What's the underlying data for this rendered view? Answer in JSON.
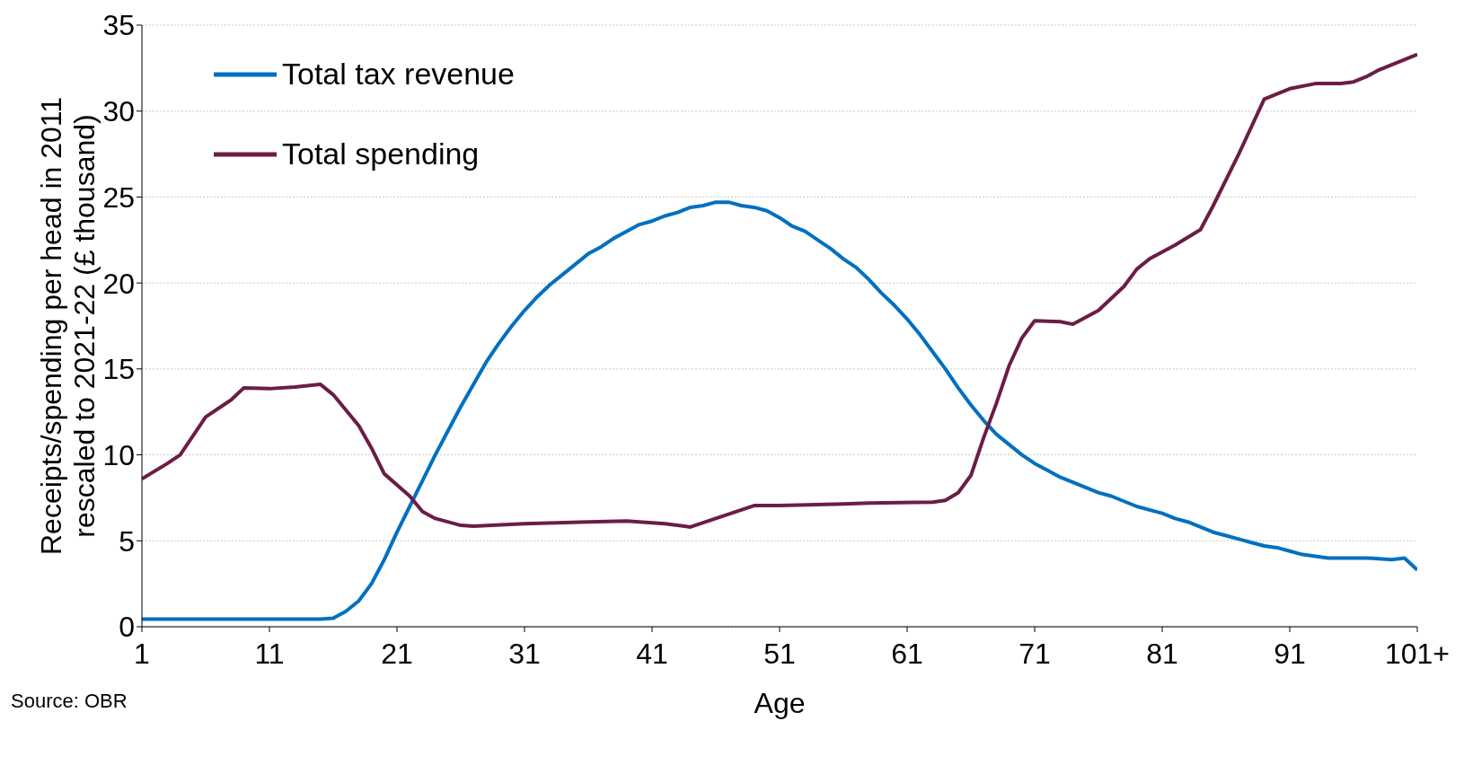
{
  "chart_data": {
    "type": "line",
    "xlabel": "Age",
    "ylabel": "Receipts/spending per head in 2011 rescaled to 2021-22 (£ thousand)",
    "annotations": [
      "Source: OBR"
    ],
    "xlim": [
      1,
      101
    ],
    "xticks": [
      1,
      11,
      21,
      31,
      41,
      51,
      61,
      71,
      81,
      91,
      {
        "value": 101,
        "label": "101+"
      }
    ],
    "ylim": [
      0,
      35
    ],
    "yticks": [
      0,
      5,
      10,
      15,
      20,
      25,
      30,
      35
    ],
    "grid": "y",
    "legend": "top left",
    "marker": "none",
    "line_style": "solid",
    "series": [
      {
        "name": "Total tax revenue",
        "color": "#0070c0",
        "x": [
          1,
          15,
          16,
          17,
          18,
          19,
          20,
          21,
          22,
          23,
          24,
          25,
          26,
          27,
          28,
          29,
          30,
          31,
          32,
          33,
          34,
          35,
          36,
          37,
          38,
          39,
          40,
          41,
          42,
          43,
          44,
          45,
          46,
          47,
          48,
          49,
          50,
          51,
          52,
          53,
          54,
          55,
          56,
          57,
          58,
          59,
          60,
          61,
          62,
          63,
          64,
          65,
          66,
          67,
          68,
          69,
          70,
          71,
          72,
          73,
          74,
          75,
          76,
          77,
          78,
          79,
          80,
          81,
          82,
          83,
          84,
          85,
          86,
          87,
          88,
          89,
          90,
          91,
          92,
          93,
          94,
          95,
          97,
          99,
          100,
          101
        ],
        "values": [
          0.45,
          0.45,
          0.5,
          0.9,
          1.5,
          2.5,
          3.9,
          5.5,
          7,
          8.5,
          10,
          11.4,
          12.8,
          14.1,
          15.4,
          16.5,
          17.5,
          18.4,
          19.2,
          19.9,
          20.5,
          21.1,
          21.7,
          22.1,
          22.6,
          23,
          23.4,
          23.6,
          23.9,
          24.1,
          24.4,
          24.5,
          24.7,
          24.7,
          24.5,
          24.4,
          24.2,
          23.8,
          23.3,
          23,
          22.5,
          22,
          21.4,
          20.9,
          20.2,
          19.4,
          18.7,
          17.9,
          17,
          16,
          15,
          13.9,
          12.9,
          12,
          11.2,
          10.6,
          10,
          9.5,
          9.1,
          8.7,
          8.4,
          8.1,
          7.8,
          7.6,
          7.3,
          7,
          6.8,
          6.6,
          6.3,
          6.1,
          5.8,
          5.5,
          5.3,
          5.1,
          4.9,
          4.7,
          4.6,
          4.4,
          4.2,
          4.1,
          4,
          4,
          4,
          3.9,
          4,
          3.3
        ]
      },
      {
        "name": "Total spending",
        "color": "#6b1d45",
        "x": [
          1,
          3,
          4,
          6,
          8,
          9,
          11,
          13,
          15,
          16,
          18,
          19,
          20,
          22,
          23,
          24,
          26,
          27,
          31,
          36,
          39,
          42,
          44,
          46,
          48,
          49,
          51,
          56,
          58,
          63,
          64,
          65,
          66,
          67,
          68,
          69,
          70,
          71,
          73,
          74,
          76,
          78,
          79,
          80,
          82,
          84,
          85,
          87,
          89,
          91,
          93,
          95,
          96,
          97,
          98,
          100,
          101
        ],
        "values": [
          8.6,
          9.5,
          10,
          12.2,
          13.2,
          13.9,
          13.85,
          13.95,
          14.1,
          13.5,
          11.7,
          10.4,
          8.9,
          7.6,
          6.7,
          6.3,
          5.9,
          5.85,
          6,
          6.1,
          6.15,
          6,
          5.8,
          6.3,
          6.8,
          7.05,
          7.05,
          7.15,
          7.2,
          7.25,
          7.35,
          7.8,
          8.8,
          11,
          13,
          15.2,
          16.8,
          17.8,
          17.75,
          17.6,
          18.4,
          19.8,
          20.8,
          21.4,
          22.2,
          23.1,
          24.5,
          27.5,
          30.7,
          31.3,
          31.6,
          31.6,
          31.7,
          32,
          32.4,
          33,
          33.3
        ]
      }
    ]
  }
}
